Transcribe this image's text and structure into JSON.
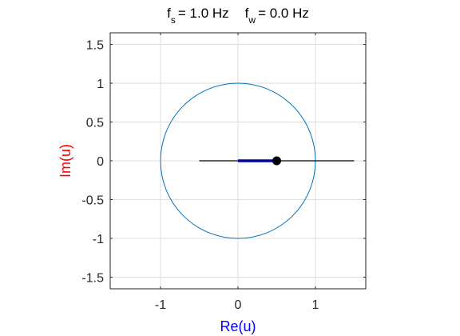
{
  "chart_data": {
    "type": "line",
    "title": {
      "fs_symbol": "f",
      "fs_sub": "s",
      "fs_value": "= 1.0  Hz",
      "fw_symbol": "f",
      "fw_sub": "w",
      "fw_value": "= 0.0  Hz"
    },
    "xlabel": "Re(u)",
    "ylabel": "Im(u)",
    "xlabel_color": "#0000ff",
    "ylabel_color": "#ff0000",
    "xlim": [
      -1.65,
      1.65
    ],
    "ylim": [
      -1.65,
      1.65
    ],
    "grid": true,
    "xticks": [
      -1,
      0,
      1
    ],
    "xtick_labels": [
      "-1",
      "0",
      "1"
    ],
    "yticks": [
      1.5,
      1,
      0.5,
      0,
      -0.5,
      -1,
      -1.5
    ],
    "ytick_labels": [
      "1.5",
      "1",
      "0.5",
      "0",
      "-0.5",
      "-1",
      "-1.5"
    ],
    "unit_circle": {
      "center": [
        0,
        0
      ],
      "radius": 1,
      "color": "#0072bd"
    },
    "real_axis_line": {
      "x": [
        -0.5,
        1.5
      ],
      "y": [
        0,
        0
      ],
      "color": "#000000"
    },
    "vector": {
      "x": [
        0,
        0.5
      ],
      "y": [
        0,
        0
      ],
      "color": "#0000a0"
    },
    "point": {
      "x": 0.5,
      "y": 0,
      "color": "#000000"
    }
  }
}
